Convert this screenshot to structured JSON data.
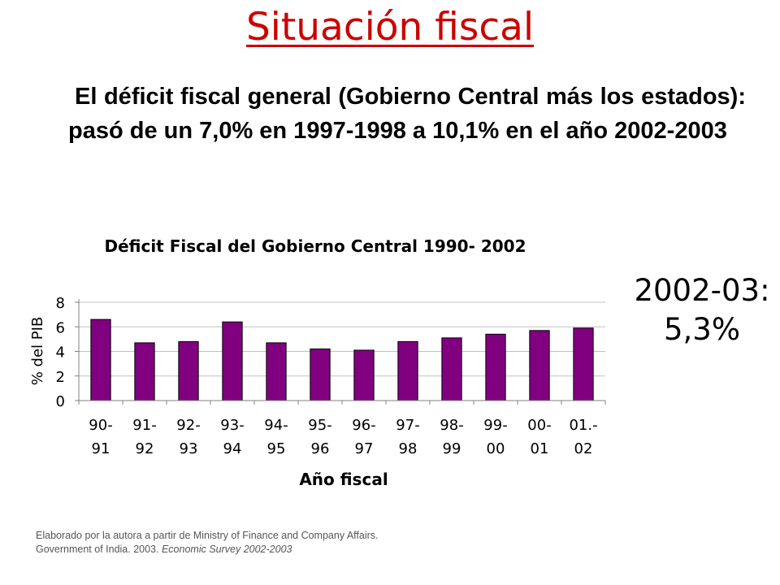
{
  "page": {
    "title": "Situación fiscal",
    "body_text": "El déficit fiscal general (Gobierno Central más los estados): pasó de un 7,0% en 1997-1998 a 10,1% en el año 2002-2003",
    "annotation_line1": "2002-03:",
    "annotation_line2": "5,3%",
    "source_line1": "Elaborado por la autora a partir de Ministry of Finance and Company Affairs.",
    "source_line2_plain": "Government of India. 2003. ",
    "source_line2_italic": "Economic Survey 2002-2003"
  },
  "colors": {
    "title": "#cc0000",
    "bar": "#800080",
    "axis": "#808080",
    "grid": "#c0c0c0"
  },
  "chart_data": {
    "type": "bar",
    "title": "Déficit Fiscal del Gobierno Central 1990- 2002",
    "xlabel": "Año fiscal",
    "ylabel": "% del PIB",
    "categories": [
      [
        "90-",
        "91"
      ],
      [
        "91-",
        "92"
      ],
      [
        "92-",
        "93"
      ],
      [
        "93-",
        "94"
      ],
      [
        "94-",
        "95"
      ],
      [
        "95-",
        "96"
      ],
      [
        "96-",
        "97"
      ],
      [
        "97-",
        "98"
      ],
      [
        "98-",
        "99"
      ],
      [
        "99-",
        "00"
      ],
      [
        "00-",
        "01"
      ],
      [
        "01.-",
        "02"
      ]
    ],
    "values": [
      6.6,
      4.7,
      4.8,
      6.4,
      4.7,
      4.2,
      4.1,
      4.8,
      5.1,
      5.4,
      5.7,
      5.9
    ],
    "ylim": [
      0,
      8
    ],
    "yticks": [
      "0",
      "2",
      "4",
      "6",
      "8"
    ],
    "grid": true,
    "legend": "none"
  }
}
